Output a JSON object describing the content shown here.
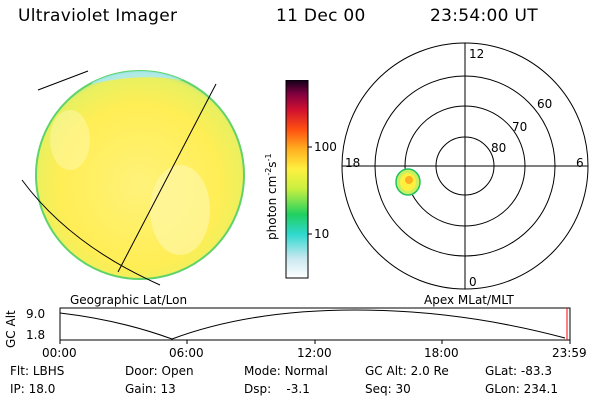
{
  "header": {
    "instrument": "Ultraviolet Imager",
    "date": "11 Dec 00",
    "time": "23:54:00 UT"
  },
  "image_panel": {
    "label": "Geographic Lat/Lon"
  },
  "colorbar": {
    "unit_label": "photon cm-2s-1",
    "unit_base": "photon cm",
    "unit_sup1": "-2",
    "unit_mid": "s",
    "unit_sup2": "-1",
    "ticks": [
      "100",
      "10"
    ]
  },
  "polar_panel": {
    "label": "Apex MLat/MLT",
    "mlt_labels": {
      "top": "12",
      "bottom": "0",
      "left": "18",
      "right": "6"
    },
    "mlat_labels": [
      "60",
      "70",
      "80"
    ]
  },
  "altitude_plot": {
    "ylabel": "GC Alt",
    "y_ticks": [
      "9.0",
      "1.8"
    ],
    "x_ticks": [
      "00:00",
      "06:00",
      "12:00",
      "18:00",
      "23:59"
    ]
  },
  "info": {
    "row1": [
      {
        "key": "Flt:",
        "value": "LBHS"
      },
      {
        "key": "Door:",
        "value": "Open"
      },
      {
        "key": "Mode:",
        "value": "Normal"
      },
      {
        "key": "GC Alt:",
        "value": "2.0 Re"
      },
      {
        "key": "GLat:",
        "value": "-83.3"
      }
    ],
    "row2": [
      {
        "key": "IP:",
        "value": "18.0"
      },
      {
        "key": "Gain:",
        "value": "13"
      },
      {
        "key": "Dsp:",
        "value": "-3.1"
      },
      {
        "key": "Seq:",
        "value": "30"
      },
      {
        "key": "GLon:",
        "value": "234.1"
      }
    ]
  }
}
